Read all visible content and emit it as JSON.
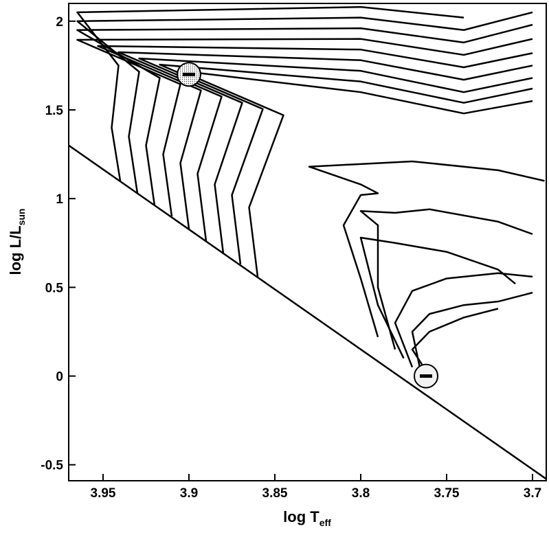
{
  "chart_data": {
    "type": "line",
    "xlabel": "log T",
    "xlabel_sub": "eff",
    "ylabel": "log L/L",
    "ylabel_sub": "sun",
    "xlim": [
      3.97,
      3.692
    ],
    "ylim": [
      -0.59,
      2.1
    ],
    "xticks": [
      3.95,
      3.9,
      3.85,
      3.8,
      3.75,
      3.7
    ],
    "yticks": [
      -0.5,
      0,
      0.5,
      1,
      1.5,
      2
    ],
    "color": "#000000",
    "series": [
      {
        "x": [
          3.97,
          3.692
        ],
        "values": [
          1.3,
          -0.58
        ]
      },
      {
        "x": [
          3.86,
          3.865,
          3.845,
          3.905,
          3.8,
          3.74,
          3.7
        ],
        "values": [
          0.56,
          0.95,
          1.47,
          1.72,
          1.6,
          1.48,
          1.55
        ]
      },
      {
        "x": [
          3.87,
          3.875,
          3.857,
          3.917,
          3.8,
          3.74,
          3.7
        ],
        "values": [
          0.63,
          1.02,
          1.505,
          1.755,
          1.66,
          1.54,
          1.62
        ]
      },
      {
        "x": [
          3.88,
          3.885,
          3.869,
          3.929,
          3.8,
          3.74,
          3.7
        ],
        "values": [
          0.69,
          1.08,
          1.54,
          1.79,
          1.72,
          1.6,
          1.68
        ]
      },
      {
        "x": [
          3.89,
          3.895,
          3.881,
          3.941,
          3.8,
          3.74,
          3.7
        ],
        "values": [
          0.76,
          1.14,
          1.575,
          1.825,
          1.78,
          1.67,
          1.75
        ]
      },
      {
        "x": [
          3.9,
          3.905,
          3.893,
          3.953,
          3.8,
          3.74,
          3.7
        ],
        "values": [
          0.83,
          1.2,
          1.61,
          1.86,
          1.84,
          1.74,
          1.82
        ]
      },
      {
        "x": [
          3.91,
          3.915,
          3.905,
          3.965,
          3.8,
          3.74,
          3.7
        ],
        "values": [
          0.9,
          1.25,
          1.645,
          1.895,
          1.9,
          1.81,
          1.9
        ]
      },
      {
        "x": [
          3.92,
          3.925,
          3.917,
          3.965,
          3.8,
          3.74,
          3.7
        ],
        "values": [
          0.96,
          1.3,
          1.68,
          1.95,
          1.96,
          1.88,
          1.98
        ]
      },
      {
        "x": [
          3.93,
          3.935,
          3.929,
          3.965,
          3.8,
          3.74,
          3.7
        ],
        "values": [
          1.03,
          1.35,
          1.715,
          2.0,
          2.02,
          1.95,
          2.05
        ]
      },
      {
        "x": [
          3.94,
          3.945,
          3.941,
          3.965,
          3.8,
          3.74
        ],
        "values": [
          1.1,
          1.4,
          1.75,
          2.05,
          2.08,
          2.02
        ]
      },
      {
        "x": [
          3.79,
          3.8,
          3.81,
          3.8,
          3.79,
          3.8,
          3.83,
          3.77,
          3.72,
          3.693
        ],
        "values": [
          0.22,
          0.55,
          0.85,
          1.02,
          1.03,
          1.08,
          1.18,
          1.21,
          1.16,
          1.1
        ]
      },
      {
        "x": [
          3.78,
          3.79,
          3.79,
          3.8,
          3.78,
          3.76,
          3.72,
          3.7
        ],
        "values": [
          0.15,
          0.5,
          0.85,
          0.93,
          0.92,
          0.94,
          0.87,
          0.8
        ]
      },
      {
        "x": [
          3.775,
          3.79,
          3.8,
          3.78,
          3.75,
          3.72,
          3.71
        ],
        "values": [
          0.1,
          0.4,
          0.78,
          0.75,
          0.7,
          0.6,
          0.52
        ]
      },
      {
        "x": [
          3.77,
          3.78,
          3.77,
          3.75,
          3.72,
          3.7
        ],
        "values": [
          0.05,
          0.3,
          0.48,
          0.55,
          0.58,
          0.56
        ]
      },
      {
        "x": [
          3.765,
          3.77,
          3.76,
          3.74,
          3.72,
          3.7
        ],
        "values": [
          0.02,
          0.25,
          0.35,
          0.4,
          0.42,
          0.47
        ]
      },
      {
        "x": [
          3.76,
          3.77,
          3.76,
          3.74,
          3.72
        ],
        "values": [
          0.0,
          0.15,
          0.25,
          0.33,
          0.38
        ]
      }
    ],
    "markers": [
      {
        "x": 3.9,
        "y": 1.7
      },
      {
        "x": 3.762,
        "y": 0
      }
    ]
  }
}
